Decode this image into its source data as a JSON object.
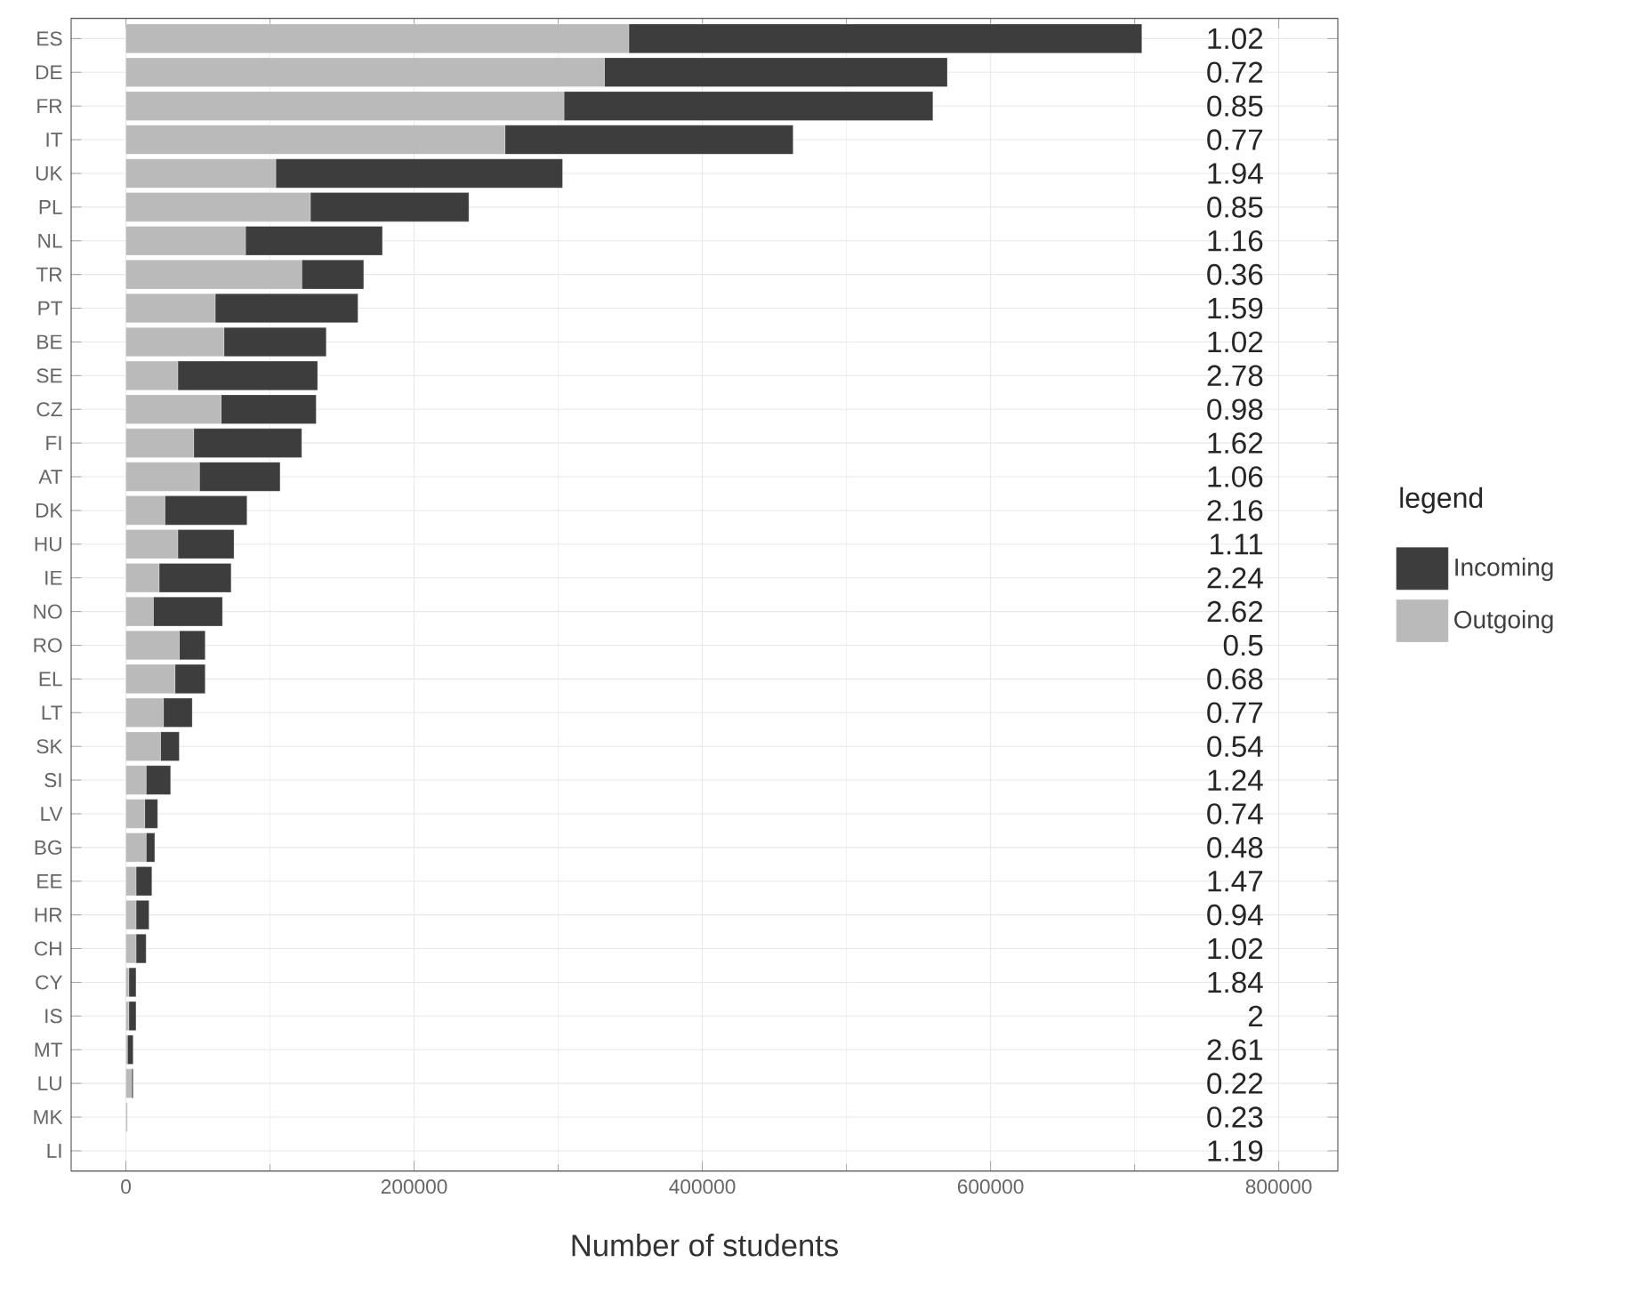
{
  "chart_data": {
    "type": "bar",
    "orientation": "horizontal",
    "stacked": true,
    "xlabel": "Number of students",
    "legend_title": "legend",
    "legend": "right",
    "grid": true,
    "categories": [
      "ES",
      "DE",
      "FR",
      "IT",
      "UK",
      "PL",
      "NL",
      "TR",
      "PT",
      "BE",
      "SE",
      "CZ",
      "FI",
      "AT",
      "DK",
      "HU",
      "IE",
      "NO",
      "RO",
      "EL",
      "LT",
      "SK",
      "SI",
      "LV",
      "BG",
      "EE",
      "HR",
      "CH",
      "CY",
      "IS",
      "MT",
      "LU",
      "MK",
      "LI"
    ],
    "series": [
      {
        "name": "Outgoing",
        "color": "#bababa",
        "values": [
          349000,
          332000,
          304000,
          263000,
          104000,
          128000,
          83000,
          122000,
          62000,
          68000,
          36000,
          66000,
          47000,
          51000,
          27000,
          36000,
          23000,
          19000,
          37000,
          34000,
          26000,
          24000,
          14000,
          13000,
          14000,
          7000,
          7000,
          7000,
          2000,
          2000,
          1000,
          4000,
          1000,
          0
        ]
      },
      {
        "name": "Incoming",
        "color": "#3d3d3d",
        "values": [
          356000,
          238000,
          256000,
          200000,
          199000,
          110000,
          95000,
          43000,
          99000,
          71000,
          97000,
          66000,
          75000,
          56000,
          57000,
          39000,
          50000,
          48000,
          18000,
          21000,
          20000,
          13000,
          17000,
          9000,
          6000,
          11000,
          9000,
          7000,
          5000,
          5000,
          4000,
          1000,
          0,
          0
        ]
      }
    ],
    "xlim": [
      -38000,
      841000
    ],
    "xticks": [
      0,
      200000,
      400000,
      600000,
      800000
    ],
    "annotations": [
      "1.02",
      "0.72",
      "0.85",
      "0.77",
      "1.94",
      "0.85",
      "1.16",
      "0.36",
      "1.59",
      "1.02",
      "2.78",
      "0.98",
      "1.62",
      "1.06",
      "2.16",
      "1.11",
      "2.24",
      "2.62",
      "0.5",
      "0.68",
      "0.77",
      "0.54",
      "1.24",
      "0.74",
      "0.48",
      "1.47",
      "0.94",
      "1.02",
      "1.84",
      "2",
      "2.61",
      "0.22",
      "0.23",
      "1.19"
    ]
  }
}
